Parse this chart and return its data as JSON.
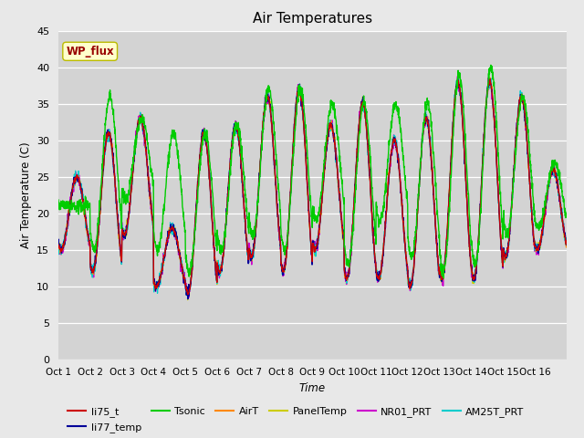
{
  "title": "Air Temperatures",
  "xlabel": "Time",
  "ylabel": "Air Temperature (C)",
  "ylim": [
    0,
    45
  ],
  "yticks": [
    0,
    5,
    10,
    15,
    20,
    25,
    30,
    35,
    40,
    45
  ],
  "x_labels": [
    "Oct 1",
    "Oct 2",
    "Oct 3",
    "Oct 4",
    "Oct 5",
    "Oct 6",
    "Oct 7",
    "Oct 8",
    "Oct 9",
    "Oct 10",
    "Oct 11",
    "Oct 12",
    "Oct 13",
    "Oct 14",
    "Oct 15",
    "Oct 16"
  ],
  "n_days": 16,
  "background_color": "#e8e8e8",
  "plot_bg_color": "#d3d3d3",
  "wp_flux_box_color": "#ffffcc",
  "wp_flux_text_color": "#990000",
  "legend": [
    {
      "label": "li75_t",
      "color": "#cc0000"
    },
    {
      "label": "li77_temp",
      "color": "#000099"
    },
    {
      "label": "Tsonic",
      "color": "#00cc00"
    },
    {
      "label": "AirT",
      "color": "#ff8800"
    },
    {
      "label": "PanelTemp",
      "color": "#cccc00"
    },
    {
      "label": "NR01_PRT",
      "color": "#cc00cc"
    },
    {
      "label": "AM25T_PRT",
      "color": "#00cccc"
    }
  ],
  "day_peaks_base": [
    25,
    31,
    33,
    18,
    31,
    32,
    36,
    37,
    32,
    35,
    30,
    33,
    38,
    38,
    36,
    26
  ],
  "tsonic_day_peaks": [
    21,
    36,
    33,
    31,
    31,
    32,
    37,
    37,
    35,
    35,
    35,
    35,
    39,
    40,
    36,
    27
  ],
  "night_min_base": [
    15,
    12,
    17,
    10,
    9,
    12,
    14,
    12,
    15,
    11,
    11,
    10,
    11,
    11,
    14,
    15
  ],
  "tsonic_night_min": [
    21,
    15,
    22,
    15,
    12,
    15,
    17,
    15,
    19,
    13,
    19,
    14,
    12,
    13,
    17,
    18
  ],
  "pts_per_day": 144
}
